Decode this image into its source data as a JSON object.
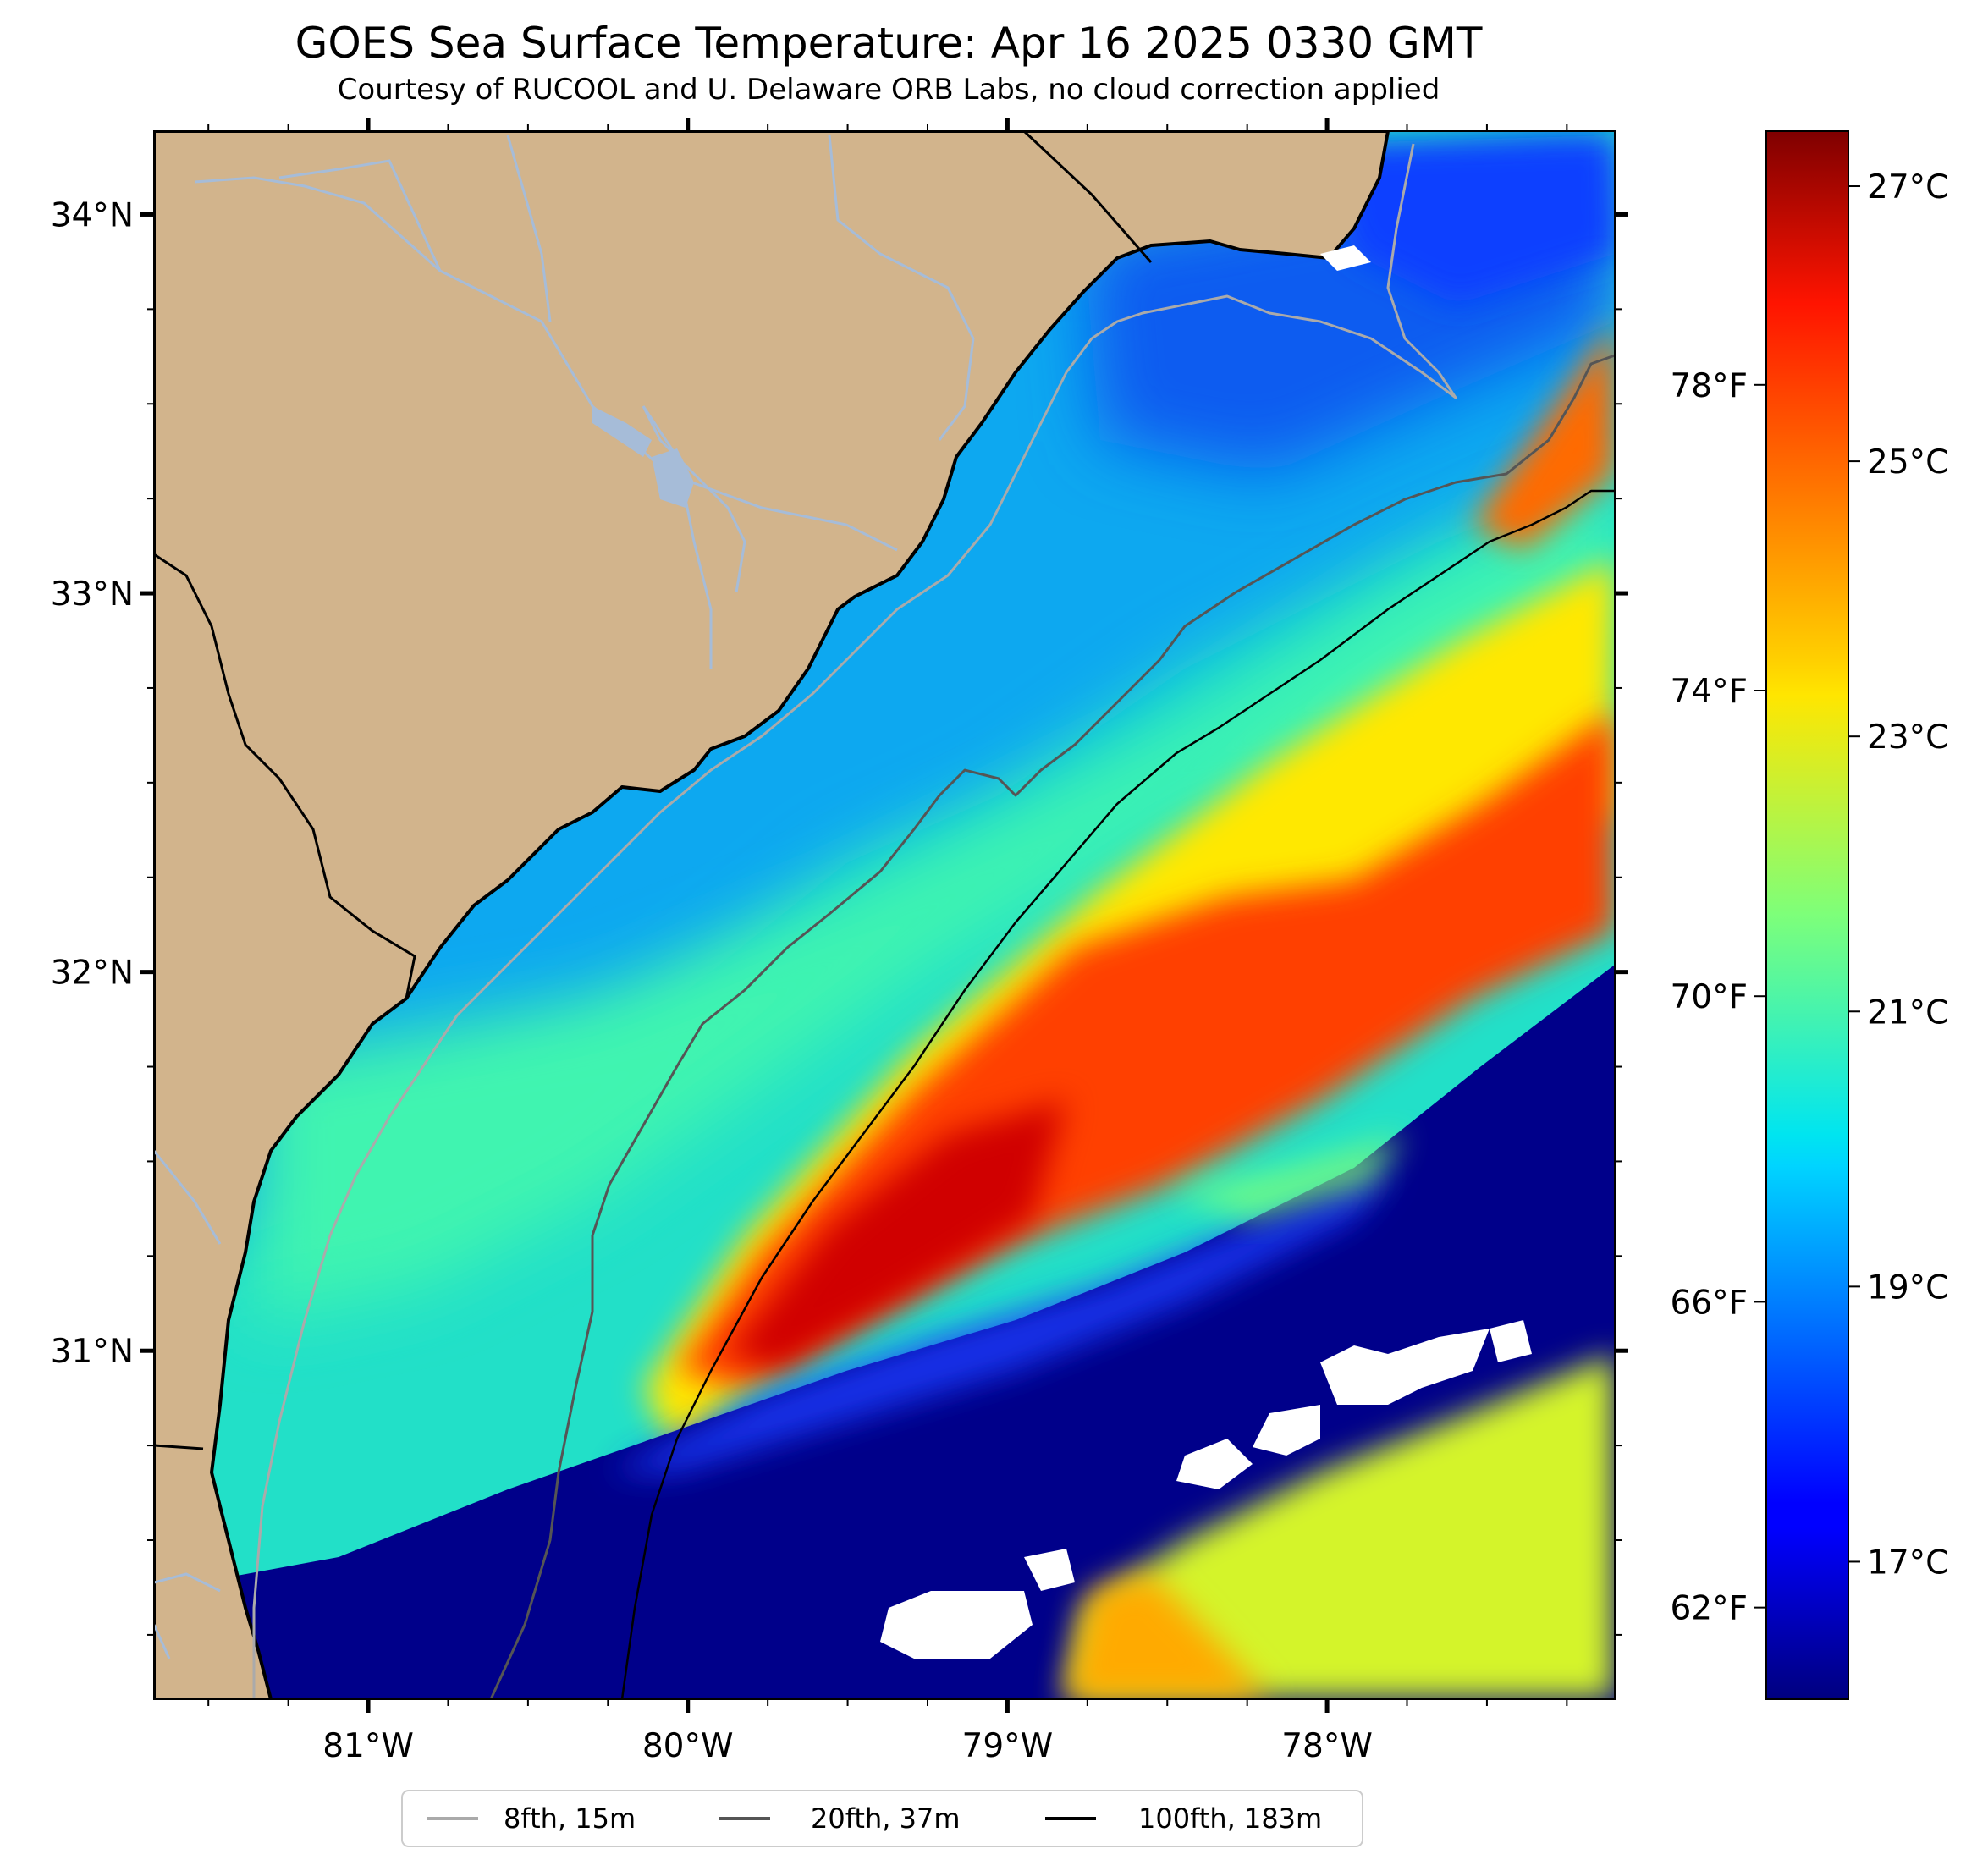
{
  "title": "GOES Sea Surface Temperature: Apr 16 2025 0330 GMT",
  "subtitle": "Courtesy of RUCOOL and U. Delaware ORB Labs, no cloud correction applied",
  "map": {
    "lon_range": [
      -81.67,
      -77.1
    ],
    "lat_range": [
      30.08,
      34.22
    ],
    "lon_ticks": [
      {
        "value": -81,
        "label": "81°W"
      },
      {
        "value": -80,
        "label": "80°W"
      },
      {
        "value": -79,
        "label": "79°W"
      },
      {
        "value": -78,
        "label": "78°W"
      }
    ],
    "lat_ticks": [
      {
        "value": 34,
        "label": "34°N"
      },
      {
        "value": 33,
        "label": "33°N"
      },
      {
        "value": 32,
        "label": "32°N"
      },
      {
        "value": 31,
        "label": "31°N"
      }
    ],
    "colors": {
      "land": "#d2b48c",
      "no_data": "#ffffff",
      "coastline": "#000000",
      "rivers": "#a6bcd8",
      "state_borders": "#000000"
    }
  },
  "colorbar": {
    "colormap": "jet",
    "celsius_range": [
      16.0,
      27.4
    ],
    "celsius_ticks": [
      {
        "value": 27,
        "label": "27°C"
      },
      {
        "value": 25,
        "label": "25°C"
      },
      {
        "value": 23,
        "label": "23°C"
      },
      {
        "value": 21,
        "label": "21°C"
      },
      {
        "value": 19,
        "label": "19°C"
      },
      {
        "value": 17,
        "label": "17°C"
      }
    ],
    "fahrenheit_ticks": [
      {
        "value": 78,
        "label": "78°F"
      },
      {
        "value": 74,
        "label": "74°F"
      },
      {
        "value": 70,
        "label": "70°F"
      },
      {
        "value": 66,
        "label": "66°F"
      },
      {
        "value": 62,
        "label": "62°F"
      }
    ]
  },
  "legend": {
    "items": [
      {
        "label": "8fth, 15m",
        "color": "#aaaaaa"
      },
      {
        "label": "20fth, 37m",
        "color": "#555555"
      },
      {
        "label": "100fth, 183m",
        "color": "#000000"
      }
    ]
  }
}
